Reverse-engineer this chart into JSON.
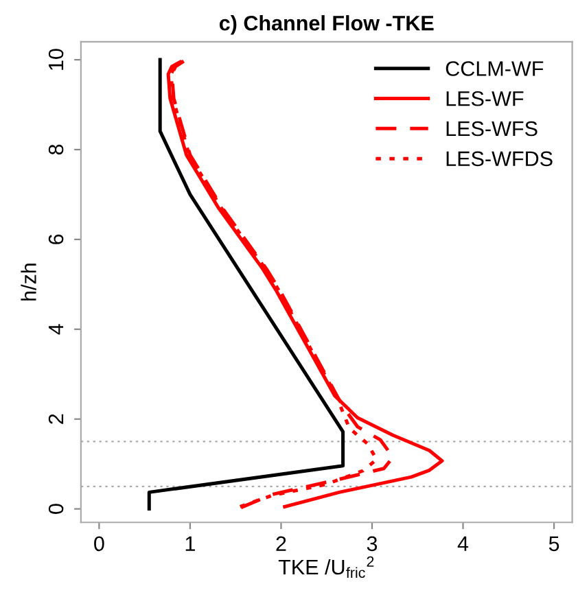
{
  "chart_data": {
    "type": "line",
    "title": "c) Channel Flow -TKE",
    "xlabel": "TKE /U$_{fric}$$^{2}$",
    "ylabel": "h/zh",
    "xlim": [
      -0.2,
      5.2
    ],
    "ylim": [
      -0.3,
      10.4
    ],
    "xticks": [
      0,
      1,
      2,
      3,
      4,
      5
    ],
    "yticks": [
      0,
      2,
      4,
      6,
      8,
      10
    ],
    "grid": false,
    "legend": "top right",
    "marker": "none",
    "ref_lines": [
      {
        "axis": "y",
        "value": 1.5,
        "color": "#aaaaaa",
        "line_style": "dotted"
      },
      {
        "axis": "y",
        "value": 0.5,
        "color": "#aaaaaa",
        "line_style": "dotted"
      }
    ],
    "series": [
      {
        "name": "CCLM-WF",
        "color": "#000000",
        "line_style": "solid",
        "x": [
          0.55,
          0.55,
          2.68,
          2.68,
          1.0,
          0.67,
          0.67
        ],
        "values": [
          0,
          0.37,
          0.96,
          1.72,
          7.0,
          8.41,
          10
        ]
      },
      {
        "name": "LES-WF",
        "color": "#ff0000",
        "line_style": "solid",
        "x": [
          2.04,
          2.64,
          3.43,
          3.63,
          3.77,
          3.63,
          3.23,
          2.84,
          2.59,
          1.95,
          1.8,
          1.31,
          0.96,
          0.78,
          0.76,
          0.8,
          0.89
        ],
        "values": [
          0.05,
          0.37,
          0.71,
          0.86,
          1.07,
          1.3,
          1.64,
          2.03,
          2.52,
          4.85,
          5.34,
          6.71,
          7.88,
          9.14,
          9.68,
          9.85,
          9.95
        ]
      },
      {
        "name": "LES-WFS",
        "color": "#ff0000",
        "line_style": "dashed",
        "x": [
          1.56,
          1.9,
          2.64,
          3.13,
          3.23,
          3.09,
          2.84,
          2.7,
          2.63,
          1.99,
          1.84,
          1.35,
          1.0,
          0.82,
          0.8,
          0.84,
          0.93
        ],
        "values": [
          0.03,
          0.32,
          0.66,
          0.9,
          1.15,
          1.54,
          1.83,
          2.22,
          2.46,
          4.85,
          5.34,
          6.71,
          7.88,
          9.14,
          9.68,
          9.85,
          9.97
        ]
      },
      {
        "name": "LES-WFDS",
        "color": "#ff0000",
        "line_style": "dotted",
        "x": [
          1.55,
          1.9,
          2.5,
          2.9,
          3.05,
          2.95,
          2.75,
          2.7,
          2.61,
          1.98,
          1.83,
          1.34,
          0.99,
          0.81,
          0.79,
          0.83,
          0.92
        ],
        "values": [
          0.05,
          0.3,
          0.55,
          0.85,
          1.1,
          1.45,
          1.8,
          2.05,
          2.5,
          4.85,
          5.34,
          6.71,
          7.88,
          9.14,
          9.68,
          9.85,
          9.96
        ]
      }
    ]
  }
}
